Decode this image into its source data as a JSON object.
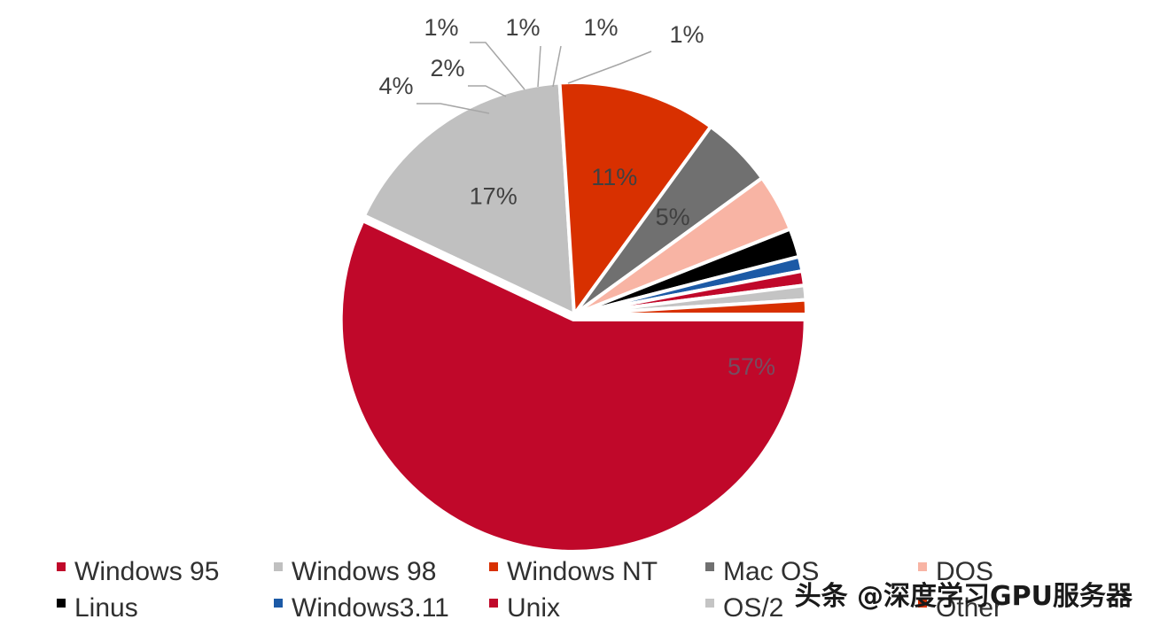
{
  "chart_data": {
    "type": "pie",
    "title": "",
    "value_unit": "%",
    "slices": [
      {
        "name": "Windows 95",
        "value": 57,
        "label": "57%",
        "color": "#c0082a"
      },
      {
        "name": "Windows 98",
        "value": 17,
        "label": "17%",
        "color": "#c0c0c0"
      },
      {
        "name": "Windows NT",
        "value": 11,
        "label": "11%",
        "color": "#d83000"
      },
      {
        "name": "Mac OS",
        "value": 5,
        "label": "5%",
        "color": "#707070"
      },
      {
        "name": "DOS",
        "value": 4,
        "label": "4%",
        "color": "#f8b4a4"
      },
      {
        "name": "Linus",
        "value": 2,
        "label": "2%",
        "color": "#000000"
      },
      {
        "name": "Windows3.11",
        "value": 1,
        "label": "1%",
        "color": "#1c5aa6"
      },
      {
        "name": "Unix",
        "value": 1,
        "label": "1%",
        "color": "#c0082a"
      },
      {
        "name": "OS/2",
        "value": 1,
        "label": "1%",
        "color": "#c4c4c4"
      },
      {
        "name": "Other",
        "value": 1,
        "label": "1%",
        "color": "#d83000"
      }
    ],
    "legend": {
      "placement": "bottom",
      "columns": 5
    }
  },
  "watermark": {
    "text": "头条 @深度学习GPU服务器"
  }
}
